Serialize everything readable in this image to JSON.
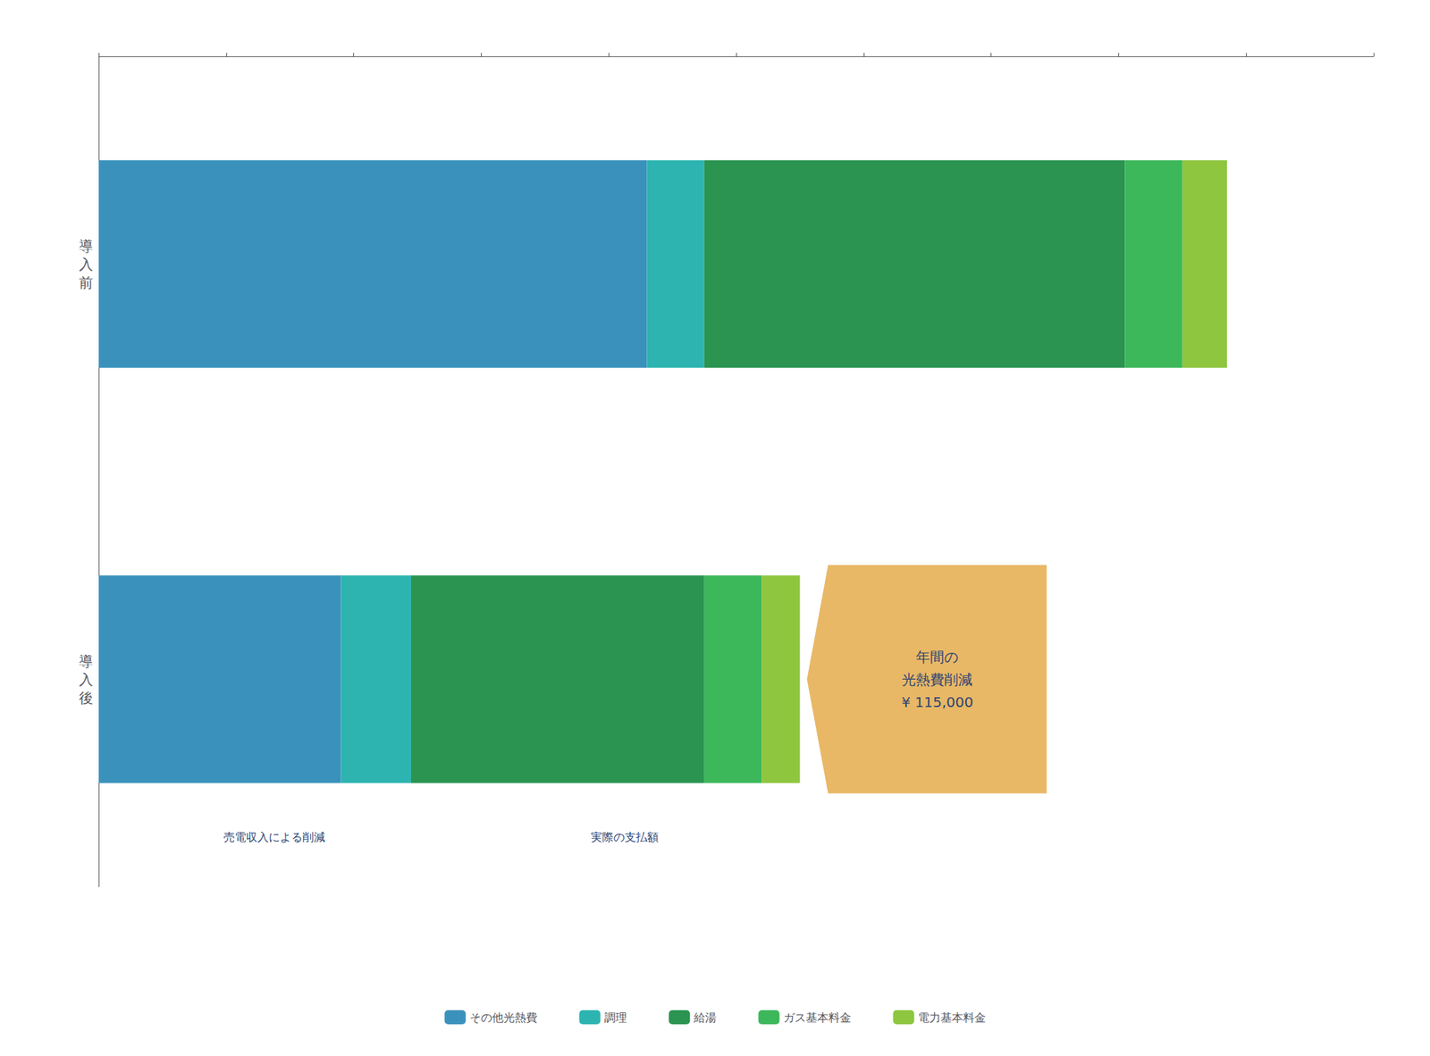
{
  "chart_data": {
    "type": "bar",
    "orientation": "horizontal",
    "stacked": true,
    "categories": [
      "導\n入\n前",
      "導\n入\n後"
    ],
    "series": [
      {
        "name": "その他光熱費",
        "color": "#3a92bc",
        "values": [
          430,
          190
        ]
      },
      {
        "name": "調理",
        "color": "#2db4b0",
        "values": [
          45,
          55
        ]
      },
      {
        "name": "給湯",
        "color": "#2a9450",
        "values": [
          330,
          230
        ]
      },
      {
        "name": "ガス基本料金",
        "color": "#3cb85a",
        "values": [
          45,
          45
        ]
      },
      {
        "name": "電力基本料金",
        "color": "#8ec63f",
        "values": [
          35,
          30
        ]
      }
    ],
    "xlim": [
      0,
      1000
    ],
    "xticks": [
      0,
      100,
      200,
      300,
      400,
      500,
      600,
      700,
      800,
      900,
      1000
    ],
    "tick_labels": "y",
    "grid": false,
    "legend": "bottom",
    "annotations": [
      {
        "text": "年間の\n光熱費削減\n¥ 115,000",
        "category": "導\n入\n後",
        "color": "#e8b866"
      },
      {
        "text": "売電収入による削減"
      },
      {
        "text": "実際の支払額"
      }
    ]
  }
}
